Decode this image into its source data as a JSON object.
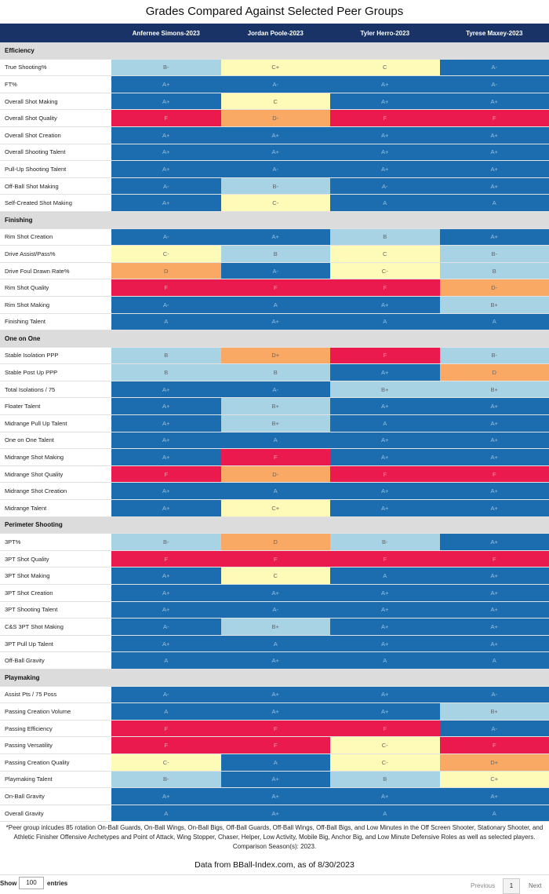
{
  "title": "Grades Compared Against Selected Peer Groups",
  "players": [
    "Anfernee Simons-2023",
    "Jordan Poole-2023",
    "Tyler Herro-2023",
    "Tyrese Maxey-2023"
  ],
  "grade_colors": {
    "A+": "#1b6db0",
    "A": "#1b6db0",
    "A-": "#1b6db0",
    "B+": "#a8d3e5",
    "B": "#a8d3e5",
    "B-": "#a8d3e5",
    "C+": "#fdfbb7",
    "C": "#fdfbb7",
    "C-": "#fdfbb7",
    "D+": "#f9a964",
    "D": "#f9a964",
    "D-": "#f9a964",
    "F": "#ea1a4f"
  },
  "sections": [
    {
      "name": "Efficiency",
      "rows": [
        {
          "metric": "True Shooting%",
          "grades": [
            "B-",
            "C+",
            "C",
            "A-"
          ]
        },
        {
          "metric": "FT%",
          "grades": [
            "A+",
            "A-",
            "A+",
            "A-"
          ]
        },
        {
          "metric": "Overall Shot Making",
          "grades": [
            "A+",
            "C",
            "A+",
            "A+"
          ]
        },
        {
          "metric": "Overall Shot Quality",
          "grades": [
            "F",
            "D-",
            "F",
            "F"
          ]
        },
        {
          "metric": "Overall Shot Creation",
          "grades": [
            "A+",
            "A+",
            "A+",
            "A+"
          ]
        },
        {
          "metric": "Overall Shooting Talent",
          "grades": [
            "A+",
            "A+",
            "A+",
            "A+"
          ]
        },
        {
          "metric": "Pull-Up Shooting Talent",
          "grades": [
            "A+",
            "A-",
            "A+",
            "A+"
          ]
        },
        {
          "metric": "Off-Ball Shot Making",
          "grades": [
            "A-",
            "B-",
            "A-",
            "A+"
          ]
        },
        {
          "metric": "Self-Created Shot Making",
          "grades": [
            "A+",
            "C-",
            "A",
            "A"
          ]
        }
      ]
    },
    {
      "name": "Finishing",
      "rows": [
        {
          "metric": "Rim Shot Creation",
          "grades": [
            "A-",
            "A+",
            "B",
            "A+"
          ]
        },
        {
          "metric": "Drive Assist/Pass%",
          "grades": [
            "C-",
            "B",
            "C",
            "B-"
          ]
        },
        {
          "metric": "Drive Foul Drawn Rate%",
          "grades": [
            "D",
            "A-",
            "C-",
            "B"
          ]
        },
        {
          "metric": "Rim Shot Quality",
          "grades": [
            "F",
            "F",
            "F",
            "D-"
          ]
        },
        {
          "metric": "Rim Shot Making",
          "grades": [
            "A-",
            "A",
            "A+",
            "B+"
          ]
        },
        {
          "metric": "Finishing Talent",
          "grades": [
            "A",
            "A+",
            "A",
            "A"
          ]
        }
      ]
    },
    {
      "name": "One on One",
      "rows": [
        {
          "metric": "Stable Isolation PPP",
          "grades": [
            "B",
            "D+",
            "F",
            "B-"
          ]
        },
        {
          "metric": "Stable Post Up PPP",
          "grades": [
            "B",
            "B",
            "A+",
            "D"
          ]
        },
        {
          "metric": "Total Isolations / 75",
          "grades": [
            "A+",
            "A-",
            "B+",
            "B+"
          ]
        },
        {
          "metric": "Floater Talent",
          "grades": [
            "A+",
            "B+",
            "A+",
            "A+"
          ]
        },
        {
          "metric": "Midrange Pull Up Talent",
          "grades": [
            "A+",
            "B+",
            "A",
            "A+"
          ]
        },
        {
          "metric": "One on One Talent",
          "grades": [
            "A+",
            "A",
            "A+",
            "A+"
          ]
        },
        {
          "metric": "Midrange Shot Making",
          "grades": [
            "A+",
            "F",
            "A+",
            "A+"
          ]
        },
        {
          "metric": "Midrange Shot Quality",
          "grades": [
            "F",
            "D-",
            "F",
            "F"
          ]
        },
        {
          "metric": "Midrange Shot Creation",
          "grades": [
            "A+",
            "A",
            "A+",
            "A+"
          ]
        },
        {
          "metric": "Midrange Talent",
          "grades": [
            "A+",
            "C+",
            "A+",
            "A+"
          ]
        }
      ]
    },
    {
      "name": "Perimeter Shooting",
      "rows": [
        {
          "metric": "3PT%",
          "grades": [
            "B-",
            "D",
            "B-",
            "A+"
          ]
        },
        {
          "metric": "3PT Shot Quality",
          "grades": [
            "F",
            "F",
            "F",
            "F"
          ]
        },
        {
          "metric": "3PT Shot Making",
          "grades": [
            "A+",
            "C",
            "A",
            "A+"
          ]
        },
        {
          "metric": "3PT Shot Creation",
          "grades": [
            "A+",
            "A+",
            "A+",
            "A+"
          ]
        },
        {
          "metric": "3PT Shooting Talent",
          "grades": [
            "A+",
            "A-",
            "A+",
            "A+"
          ]
        },
        {
          "metric": "C&S 3PT Shot Making",
          "grades": [
            "A-",
            "B+",
            "A+",
            "A+"
          ]
        },
        {
          "metric": "3PT Pull Up Talent",
          "grades": [
            "A+",
            "A",
            "A+",
            "A+"
          ]
        },
        {
          "metric": "Off-Ball Gravity",
          "grades": [
            "A",
            "A+",
            "A",
            "A"
          ]
        }
      ]
    },
    {
      "name": "Playmaking",
      "rows": [
        {
          "metric": "Assist Pts / 75 Poss",
          "grades": [
            "A-",
            "A+",
            "A+",
            "A-"
          ]
        },
        {
          "metric": "Passing Creation Volume",
          "grades": [
            "A",
            "A+",
            "A+",
            "B+"
          ]
        },
        {
          "metric": "Passing Efficiency",
          "grades": [
            "F",
            "F",
            "F",
            "A-"
          ]
        },
        {
          "metric": "Passing Versatility",
          "grades": [
            "F",
            "F",
            "C-",
            "F"
          ]
        },
        {
          "metric": "Passing Creation Quality",
          "grades": [
            "C-",
            "A",
            "C-",
            "D+"
          ]
        },
        {
          "metric": "Playmaking Talent",
          "grades": [
            "B-",
            "A+",
            "B",
            "C+"
          ]
        },
        {
          "metric": "On-Ball Gravity",
          "grades": [
            "A+",
            "A+",
            "A+",
            "A+"
          ]
        },
        {
          "metric": "Overall Gravity",
          "grades": [
            "A",
            "A+",
            "A",
            "A"
          ]
        }
      ]
    }
  ],
  "footnote_lines": [
    "*Peer group inlcudes 85 rotation On-Ball Guards, On-Ball Wings, On-Ball Bigs, Off-Ball Guards, Off-Ball Wings, Off-Ball Bigs, and Low Minutes in the Off Screen Shooter, Stationary Shooter, and",
    "Athletic Finisher Offensive Archetypes and Point of Attack, Wing Stopper, Chaser, Helper, Low Activity, Mobile Big, Anchor Big, and Low Minute Defensive Roles as well as selected players.",
    "Comparison Season(s): 2023."
  ],
  "source": "Data from BBall-Index.com, as of 8/30/2023",
  "footer": {
    "show_label": "Show",
    "entries_value": "100",
    "entries_label": "entries",
    "previous": "Previous",
    "page": "1",
    "next": "Next"
  }
}
